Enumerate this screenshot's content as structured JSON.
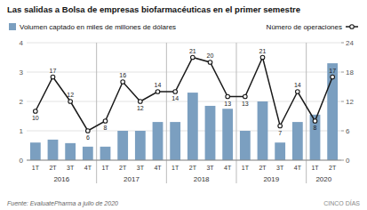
{
  "chart_data": {
    "type": "bar",
    "title": "Las salidas a Bolsa de empresas biofarmacéuticas en el primer semestre",
    "categories": [
      "1T",
      "2T",
      "3T",
      "4T",
      "1T",
      "2T",
      "3T",
      "4T",
      "1T",
      "2T",
      "3T",
      "4T",
      "1T",
      "2T",
      "3T",
      "4T",
      "1T",
      "2T"
    ],
    "annotations": [
      "2016",
      "2017",
      "2018",
      "2019",
      "2020"
    ],
    "source": "Fuente: EvaluatePharma a julio de 2020",
    "brand": "CINCO DÍAS",
    "series": [
      {
        "name": "Volumen captado en miles de millones de dólares",
        "type": "bar",
        "color": "#7b9fc0",
        "values": [
          0.6,
          0.7,
          0.58,
          0.46,
          0.46,
          1.0,
          1.0,
          1.3,
          1.3,
          2.3,
          1.85,
          1.75,
          1.0,
          2.0,
          0.6,
          1.3,
          1.55,
          3.3
        ]
      },
      {
        "name": "Número de operaciones",
        "type": "line",
        "color": "#1a1a1a",
        "axis": "y2",
        "marker": "circle",
        "data_labels": true,
        "values": [
          10,
          17,
          12,
          6,
          8,
          16,
          12,
          14,
          14,
          21,
          20,
          13,
          13,
          21,
          7,
          14,
          8,
          17
        ]
      }
    ],
    "ylim": [
      0,
      4
    ],
    "yticks": [
      0,
      1,
      2,
      3,
      4
    ],
    "y2lim": [
      0,
      24
    ],
    "y2ticks": [
      0,
      6,
      12,
      18,
      24
    ],
    "grid": true,
    "legend": "top"
  }
}
